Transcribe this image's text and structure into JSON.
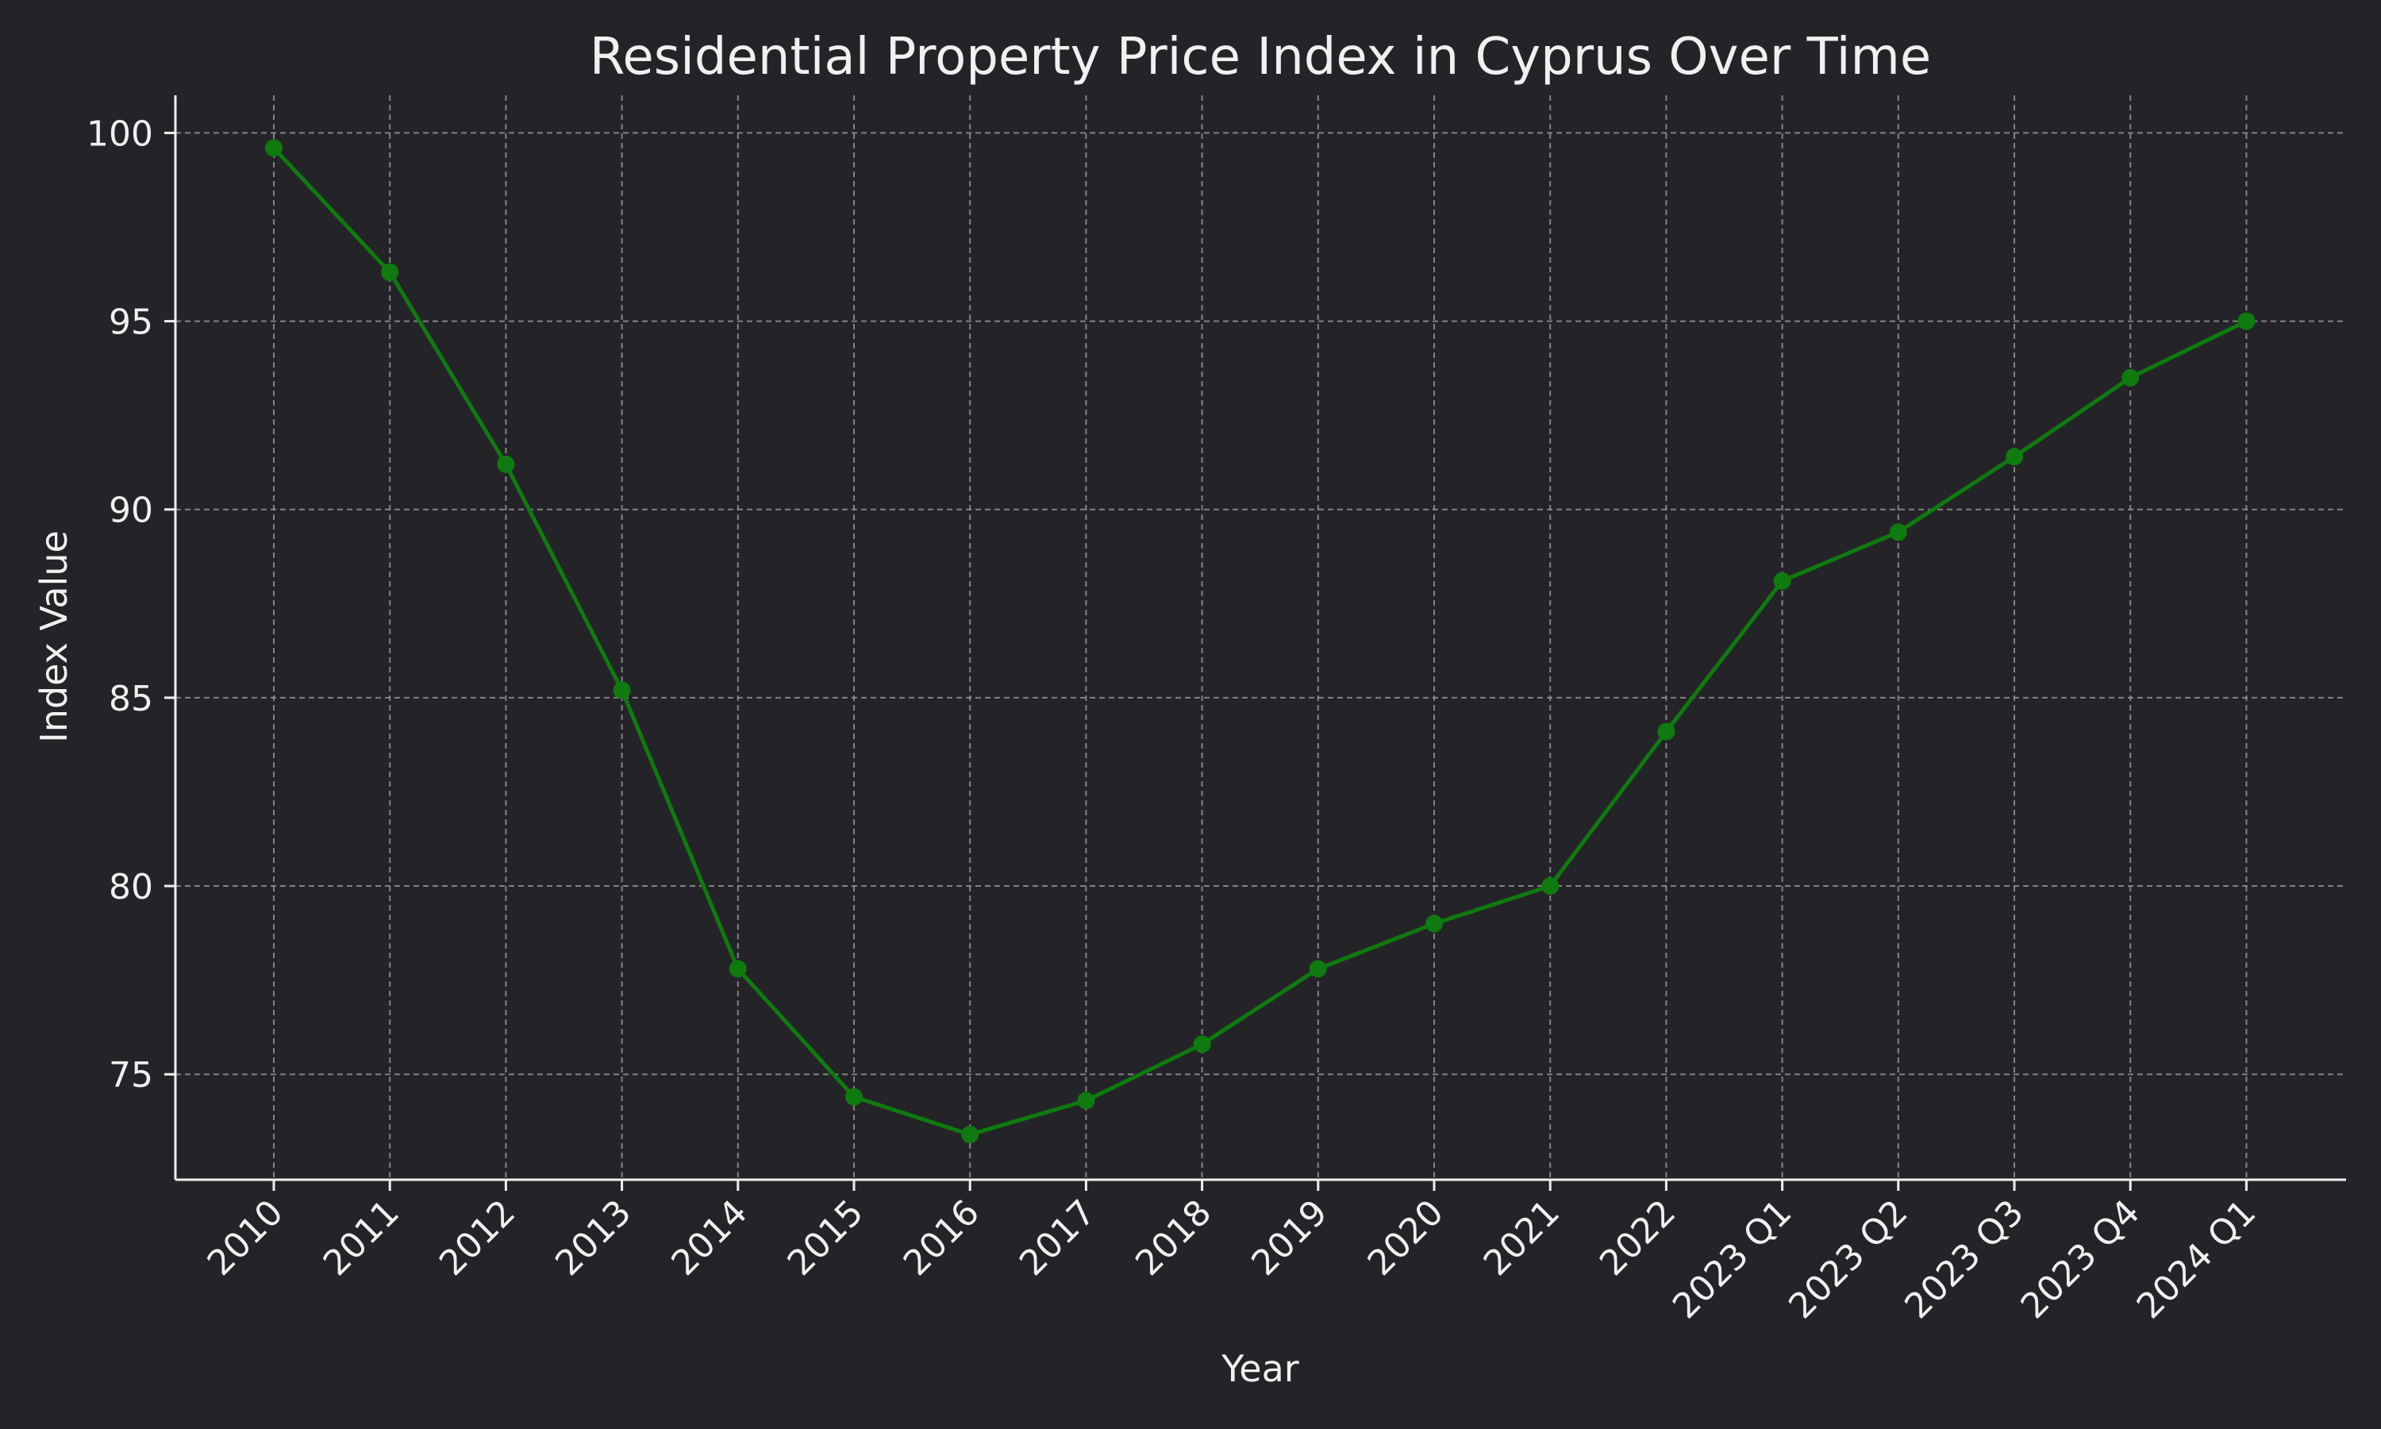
{
  "chart_data": {
    "type": "line",
    "title": "Residential Property Price Index in Cyprus Over Time",
    "xlabel": "Year",
    "ylabel": "Index Value",
    "categories": [
      "2010",
      "2011",
      "2012",
      "2013",
      "2014",
      "2015",
      "2016",
      "2017",
      "2018",
      "2019",
      "2020",
      "2021",
      "2022",
      "2023 Q1",
      "2023 Q2",
      "2023 Q3",
      "2023 Q4",
      "2024 Q1"
    ],
    "values": [
      99.6,
      96.3,
      91.2,
      85.2,
      77.8,
      74.4,
      73.4,
      74.3,
      75.8,
      77.8,
      79.0,
      80.0,
      84.1,
      88.1,
      89.4,
      91.4,
      93.5,
      95.0
    ],
    "ylim": [
      72.2,
      101.0
    ],
    "yticks": [
      75,
      80,
      85,
      90,
      95,
      100
    ],
    "grid": true,
    "legend": "none",
    "colors": {
      "background": "#242428",
      "line": "#0f7a0f",
      "marker": "#0f7a0f",
      "grid": "#9a9a9a",
      "text": "#f0f0f0"
    }
  }
}
